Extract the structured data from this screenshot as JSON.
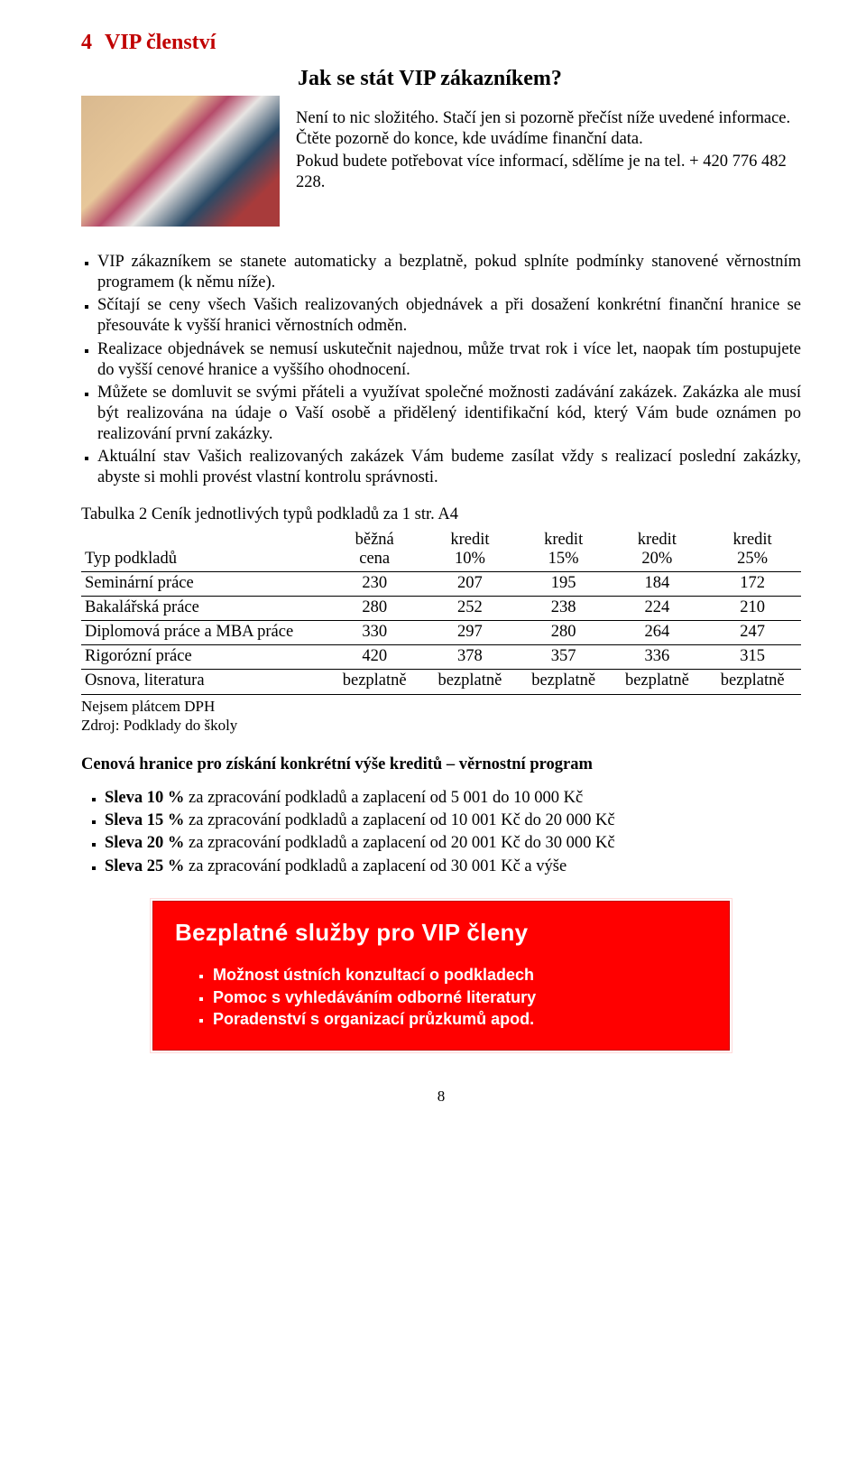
{
  "heading": {
    "number": "4",
    "text": "VIP členství"
  },
  "intro": {
    "question": "Jak se stát VIP zákazníkem?",
    "p1": " Není to nic složitého. Stačí jen si pozorně přečíst níže uvedené informace. Čtěte pozorně do konce, kde uvádíme  finanční data.",
    "p2": " Pokud budete potřebovat více informací, sdělíme je na tel. + 420 776 482 228."
  },
  "bullets": [
    "VIP zákazníkem se stanete automaticky a bezplatně, pokud splníte podmínky stanovené věrnostním programem (k němu níže).",
    "Sčítají se ceny všech Vašich realizovaných objednávek a při dosažení konkrétní finanční hranice se přesouváte k vyšší hranici věrnostních odměn.",
    "Realizace objednávek se nemusí uskutečnit najednou, může trvat rok i více let, naopak tím postupujete do vyšší cenové hranice a vyššího ohodnocení.",
    "Můžete se domluvit se svými přáteli a využívat společné možnosti zadávání zakázek. Zakázka ale musí být realizována na údaje o Vaší osobě a přidělený identifikační kód, který Vám bude oznámen po realizování první zakázky.",
    "Aktuální stav Vašich realizovaných zakázek Vám budeme zasílat vždy s realizací poslední zakázky, abyste si mohli provést vlastní kontrolu správnosti."
  ],
  "table": {
    "caption": "Tabulka 2 Ceník jednotlivých typů podkladů za 1 str. A4",
    "col_widths_pct": [
      34,
      13.5,
      13,
      13,
      13,
      13.5
    ],
    "columns": [
      {
        "line1": "",
        "line2": "Typ podkladů"
      },
      {
        "line1": "běžná",
        "line2": "cena"
      },
      {
        "line1": "kredit",
        "line2": "10%"
      },
      {
        "line1": "kredit",
        "line2": "15%"
      },
      {
        "line1": "kredit",
        "line2": "20%"
      },
      {
        "line1": "kredit",
        "line2": "25%"
      }
    ],
    "rows": [
      [
        "Seminární práce",
        "230",
        "207",
        "195",
        "184",
        "172"
      ],
      [
        "Bakalářská práce",
        "280",
        "252",
        "238",
        "224",
        "210"
      ],
      [
        "Diplomová práce a MBA práce",
        "330",
        "297",
        "280",
        "264",
        "247"
      ],
      [
        "Rigorózní práce",
        "420",
        "378",
        "357",
        "336",
        "315"
      ],
      [
        "Osnova, literatura",
        "bezplatně",
        "bezplatně",
        "bezplatně",
        "bezplatně",
        "bezplatně"
      ]
    ],
    "notes": [
      "Nejsem plátcem DPH",
      "Zdroj: Podklady do školy"
    ]
  },
  "subheading": "Cenová hranice pro získání konkrétní výše kreditů – věrnostní program",
  "discounts": [
    {
      "label": "Sleva 10 %",
      "rest": " za zpracování podkladů a zaplacení od 5 001 do 10 000 Kč"
    },
    {
      "label": "Sleva 15 %",
      "rest": " za zpracování podkladů a zaplacení od 10 001 Kč do 20 000 Kč"
    },
    {
      "label": "Sleva 20 %",
      "rest": " za zpracování podkladů a zaplacení od 20 001 Kč do 30 000 Kč"
    },
    {
      "label": "Sleva 25 %",
      "rest": " za zpracování podkladů a zaplacení od 30 001 Kč a výše"
    }
  ],
  "callout": {
    "title": "Bezplatné služby pro VIP členy",
    "items": [
      "Možnost ústních konzultací o podkladech",
      "Pomoc s vyhledáváním odborné literatury",
      "Poradenství s organizací průzkumů apod."
    ]
  },
  "page_number": "8",
  "colors": {
    "heading": "#c00000",
    "callout_bg": "#ff0000",
    "callout_text": "#ffffff",
    "body_text": "#000000",
    "table_border": "#000000"
  }
}
